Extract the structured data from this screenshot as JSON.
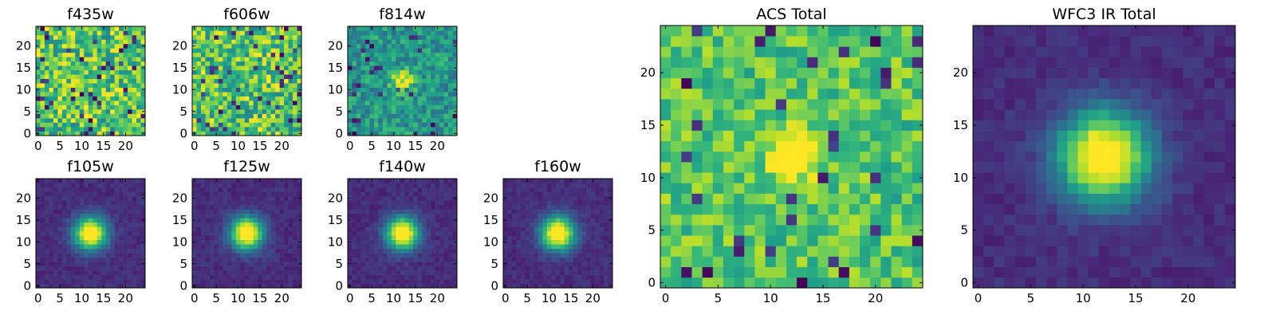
{
  "chart_data": [
    {
      "type": "heatmap",
      "title": "f435w",
      "xticks": [
        0,
        5,
        10,
        15,
        20
      ],
      "yticks": [
        0,
        5,
        10,
        15,
        20
      ],
      "xlim": [
        0,
        25
      ],
      "ylim": [
        0,
        25
      ],
      "grid_size": [
        25,
        25
      ],
      "source": {
        "style": "noise",
        "peak": [
          12,
          12
        ],
        "contrast": 0.0,
        "seed": 11
      },
      "colormap": "viridis"
    },
    {
      "type": "heatmap",
      "title": "f606w",
      "xticks": [
        0,
        5,
        10,
        15,
        20
      ],
      "yticks": [
        0,
        5,
        10,
        15,
        20
      ],
      "xlim": [
        0,
        25
      ],
      "ylim": [
        0,
        25
      ],
      "grid_size": [
        25,
        25
      ],
      "source": {
        "style": "noise",
        "peak": [
          12,
          12
        ],
        "contrast": 0.0,
        "seed": 23
      },
      "colormap": "viridis"
    },
    {
      "type": "heatmap",
      "title": "f814w",
      "xticks": [
        0,
        5,
        10,
        15,
        20
      ],
      "yticks": [
        0,
        5,
        10,
        15,
        20
      ],
      "xlim": [
        0,
        25
      ],
      "ylim": [
        0,
        25
      ],
      "grid_size": [
        25,
        25
      ],
      "source": {
        "style": "noise-peak",
        "peak": [
          12,
          12
        ],
        "contrast": 0.6,
        "seed": 37
      },
      "colormap": "viridis"
    },
    {
      "type": "heatmap",
      "title": "f105w",
      "xticks": [
        0,
        5,
        10,
        15,
        20
      ],
      "yticks": [
        0,
        5,
        10,
        15,
        20
      ],
      "xlim": [
        0,
        25
      ],
      "ylim": [
        0,
        25
      ],
      "grid_size": [
        25,
        25
      ],
      "source": {
        "style": "psf",
        "peak": [
          12,
          12
        ],
        "sigma": 2.6,
        "seed": 41
      },
      "colormap": "viridis"
    },
    {
      "type": "heatmap",
      "title": "f125w",
      "xticks": [
        0,
        5,
        10,
        15,
        20
      ],
      "yticks": [
        0,
        5,
        10,
        15,
        20
      ],
      "xlim": [
        0,
        25
      ],
      "ylim": [
        0,
        25
      ],
      "grid_size": [
        25,
        25
      ],
      "source": {
        "style": "psf",
        "peak": [
          12,
          12
        ],
        "sigma": 2.6,
        "seed": 53
      },
      "colormap": "viridis"
    },
    {
      "type": "heatmap",
      "title": "f140w",
      "xticks": [
        0,
        5,
        10,
        15,
        20
      ],
      "yticks": [
        0,
        5,
        10,
        15,
        20
      ],
      "xlim": [
        0,
        25
      ],
      "ylim": [
        0,
        25
      ],
      "grid_size": [
        25,
        25
      ],
      "source": {
        "style": "psf",
        "peak": [
          12,
          12
        ],
        "sigma": 2.6,
        "seed": 67
      },
      "colormap": "viridis"
    },
    {
      "type": "heatmap",
      "title": "f160w",
      "xticks": [
        0,
        5,
        10,
        15,
        20
      ],
      "yticks": [
        0,
        5,
        10,
        15,
        20
      ],
      "xlim": [
        0,
        25
      ],
      "ylim": [
        0,
        25
      ],
      "grid_size": [
        25,
        25
      ],
      "source": {
        "style": "psf",
        "peak": [
          12,
          12
        ],
        "sigma": 2.7,
        "seed": 79
      },
      "colormap": "viridis"
    },
    {
      "type": "heatmap",
      "title": "ACS Total",
      "xticks": [
        0,
        5,
        10,
        15,
        20
      ],
      "yticks": [
        0,
        5,
        10,
        15,
        20
      ],
      "xlim": [
        0,
        25
      ],
      "ylim": [
        0,
        25
      ],
      "grid_size": [
        25,
        25
      ],
      "source": {
        "style": "noise-peak",
        "peak": [
          12,
          12
        ],
        "contrast": 0.55,
        "seed": 97
      },
      "colormap": "viridis"
    },
    {
      "type": "heatmap",
      "title": "WFC3 IR Total",
      "xticks": [
        0,
        5,
        10,
        15,
        20
      ],
      "yticks": [
        0,
        5,
        10,
        15,
        20
      ],
      "xlim": [
        0,
        25
      ],
      "ylim": [
        0,
        25
      ],
      "grid_size": [
        25,
        25
      ],
      "source": {
        "style": "psf",
        "peak": [
          12,
          12
        ],
        "sigma": 3.0,
        "seed": 101
      },
      "colormap": "viridis"
    }
  ]
}
